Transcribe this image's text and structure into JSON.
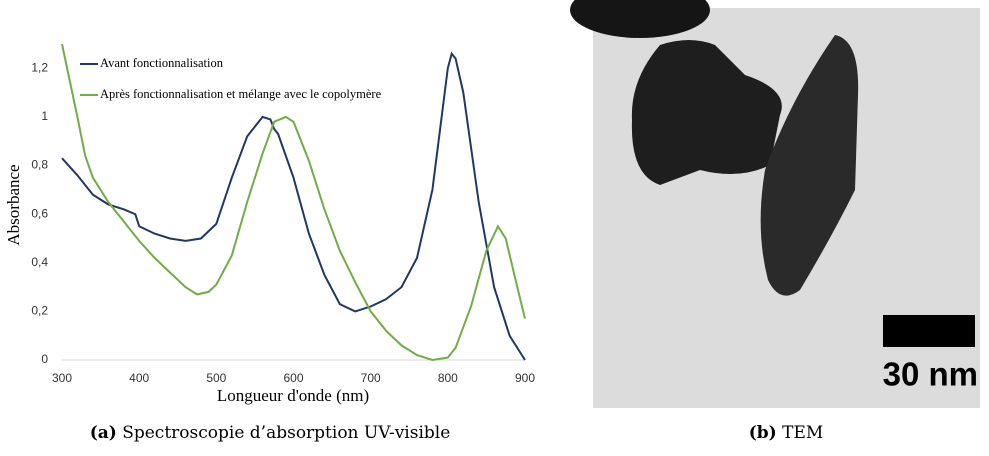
{
  "chart_data": {
    "type": "line",
    "xlabel": "Longueur d'onde (nm)",
    "ylabel": "Absorbance",
    "xlim": [
      300,
      900
    ],
    "xticks": [
      300,
      400,
      500,
      600,
      700,
      800,
      900
    ],
    "ylim": [
      0,
      1.3
    ],
    "yticks": [
      0,
      {
        "value": 0.2,
        "label": "0,2"
      },
      {
        "value": 0.4,
        "label": "0,4"
      },
      {
        "value": 0.6,
        "label": "0,6"
      },
      {
        "value": 0.8,
        "label": "0,8"
      },
      1,
      {
        "value": 1.2,
        "label": "1,2"
      }
    ],
    "grid": false,
    "legend": "upper left",
    "series": [
      {
        "name": "Avant fonctionnalisation",
        "color": "#1f3864",
        "x": [
          300,
          320,
          340,
          360,
          380,
          395,
          400,
          420,
          440,
          460,
          480,
          500,
          520,
          540,
          560,
          570,
          575,
          580,
          600,
          620,
          640,
          660,
          680,
          700,
          720,
          740,
          760,
          780,
          790,
          800,
          805,
          810,
          820,
          840,
          860,
          880,
          900
        ],
        "values": [
          0.83,
          0.76,
          0.68,
          0.64,
          0.62,
          0.6,
          0.55,
          0.52,
          0.5,
          0.49,
          0.5,
          0.56,
          0.75,
          0.92,
          1.0,
          0.99,
          0.95,
          0.93,
          0.75,
          0.52,
          0.35,
          0.23,
          0.2,
          0.22,
          0.25,
          0.3,
          0.42,
          0.7,
          0.95,
          1.2,
          1.26,
          1.24,
          1.1,
          0.65,
          0.3,
          0.1,
          0.0
        ]
      },
      {
        "name": "Après fonctionnalisation et mélange avec le copolymère",
        "color": "#70ad47",
        "x": [
          300,
          310,
          320,
          330,
          340,
          360,
          380,
          400,
          420,
          440,
          460,
          475,
          490,
          500,
          520,
          540,
          560,
          575,
          590,
          600,
          620,
          640,
          660,
          680,
          700,
          720,
          740,
          760,
          780,
          800,
          810,
          830,
          850,
          865,
          875,
          890,
          900
        ],
        "values": [
          1.3,
          1.15,
          1.0,
          0.84,
          0.75,
          0.65,
          0.57,
          0.49,
          0.42,
          0.36,
          0.3,
          0.27,
          0.28,
          0.31,
          0.43,
          0.65,
          0.85,
          0.98,
          1.0,
          0.98,
          0.82,
          0.62,
          0.45,
          0.32,
          0.2,
          0.12,
          0.06,
          0.02,
          0.0,
          0.01,
          0.05,
          0.22,
          0.45,
          0.55,
          0.5,
          0.3,
          0.17
        ]
      }
    ]
  },
  "captions": [
    {
      "label": "(a)",
      "text": "Spectroscopie d’absorption UV-visible"
    },
    {
      "label": "(b)",
      "text": "TEM"
    }
  ],
  "image": {
    "scale_bar": "30 nm"
  }
}
